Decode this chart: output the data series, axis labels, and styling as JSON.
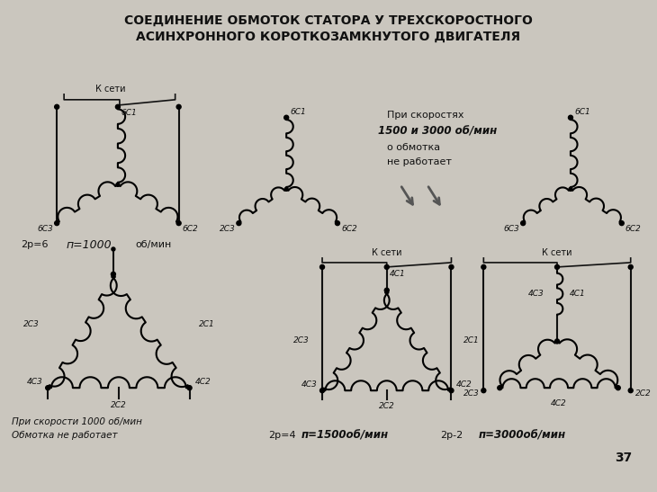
{
  "title_line1": "СОЕДИНЕНИЕ ОБМОТОК СТАТОРА У ТРЕХСКОРОСТНОГО",
  "title_line2": "АСИНХРОННОГО КОРОТКОЗАМКНУТОГО ДВИГАТЕЛЯ",
  "bg_color": "#cac6be",
  "text_color": "#111111",
  "page_number": "37"
}
